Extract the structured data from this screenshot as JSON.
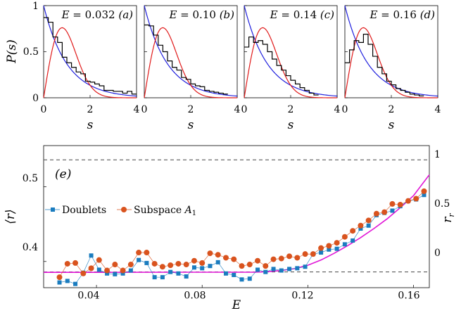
{
  "figure": {
    "colors": {
      "poisson": "#1f1fdd",
      "goe": "#e01a1a",
      "histogram": "#000000",
      "doublets": "#1a7cbf",
      "subspace": "#d9531e",
      "fit": "#e016d6",
      "reference": "#444444"
    }
  },
  "chart_data": [
    {
      "type": "line",
      "panel": "(a)",
      "title": "E = 0.032 (a)",
      "title_parts": {
        "var": "E",
        "eq": " = 0.032 ",
        "tag": "(a)"
      },
      "xlabel": "s",
      "ylabel": "P(s)",
      "xlim": [
        0,
        4
      ],
      "ylim": [
        0,
        1
      ],
      "xticks": [
        "0",
        "2",
        "4"
      ],
      "yticks": [
        "0",
        "0.5",
        "1"
      ],
      "histogram": {
        "edges": [
          0,
          0.2,
          0.4,
          0.6,
          0.8,
          1.0,
          1.2,
          1.4,
          1.6,
          1.8,
          2.0,
          2.2,
          2.4,
          2.6,
          2.8,
          3.0,
          3.2,
          3.4,
          3.6,
          3.8,
          4.0
        ],
        "values": [
          0.87,
          0.82,
          0.66,
          0.6,
          0.44,
          0.38,
          0.33,
          0.28,
          0.26,
          0.18,
          0.17,
          0.15,
          0.13,
          0.08,
          0.08,
          0.07,
          0.07,
          0.05,
          0.07,
          0.04
        ]
      },
      "series": [
        {
          "curve": "poisson"
        },
        {
          "curve": "goe"
        }
      ]
    },
    {
      "type": "line",
      "panel": "(b)",
      "title": "E = 0.10 (b)",
      "title_parts": {
        "var": "E",
        "eq": " = 0.10 ",
        "tag": "(b)"
      },
      "xlabel": "s",
      "xlim": [
        0,
        4
      ],
      "ylim": [
        0,
        1
      ],
      "xticks": [
        "0",
        "2",
        "4"
      ],
      "histogram": {
        "edges": [
          0,
          0.2,
          0.4,
          0.6,
          0.8,
          1.0,
          1.2,
          1.4,
          1.6,
          1.8,
          2.0,
          2.2,
          2.4,
          2.6,
          2.8,
          3.0,
          3.2,
          3.4,
          3.6
        ],
        "values": [
          0.79,
          0.78,
          0.68,
          0.57,
          0.5,
          0.4,
          0.33,
          0.3,
          0.22,
          0.2,
          0.15,
          0.13,
          0.12,
          0.08,
          0.07,
          0.06,
          0.05,
          0.04
        ]
      },
      "series": [
        {
          "curve": "poisson"
        },
        {
          "curve": "goe"
        }
      ]
    },
    {
      "type": "line",
      "panel": "(c)",
      "title": "E = 0.14 (c)",
      "title_parts": {
        "var": "E",
        "eq": " = 0.14 ",
        "tag": "(c)"
      },
      "xlabel": "s",
      "xlim": [
        0,
        4
      ],
      "ylim": [
        0,
        1
      ],
      "xticks": [
        "0",
        "2",
        "4"
      ],
      "histogram": {
        "edges": [
          0,
          0.2,
          0.4,
          0.6,
          0.8,
          1.0,
          1.2,
          1.4,
          1.6,
          1.8,
          2.0,
          2.2,
          2.4,
          2.6,
          2.8,
          3.0,
          3.2
        ],
        "values": [
          0.55,
          0.66,
          0.6,
          0.62,
          0.58,
          0.5,
          0.42,
          0.35,
          0.3,
          0.24,
          0.19,
          0.15,
          0.11,
          0.08,
          0.05,
          0.03
        ]
      },
      "series": [
        {
          "curve": "poisson"
        },
        {
          "curve": "goe"
        }
      ]
    },
    {
      "type": "line",
      "panel": "(d)",
      "title": "E = 0.16 (d)",
      "title_parts": {
        "var": "E",
        "eq": " = 0.16 ",
        "tag": "(d)"
      },
      "xlabel": "s",
      "xlim": [
        0,
        4
      ],
      "ylim": [
        0,
        1
      ],
      "xticks": [
        "0",
        "2",
        "4"
      ],
      "histogram": {
        "edges": [
          0,
          0.2,
          0.4,
          0.6,
          0.8,
          1.0,
          1.2,
          1.4,
          1.6,
          1.8,
          2.0,
          2.2,
          2.4,
          2.6,
          2.8,
          3.0,
          3.2,
          3.4
        ],
        "values": [
          0.38,
          0.52,
          0.62,
          0.6,
          0.69,
          0.58,
          0.45,
          0.33,
          0.26,
          0.18,
          0.14,
          0.1,
          0.08,
          0.06,
          0.04,
          0.03,
          0.02
        ]
      },
      "series": [
        {
          "curve": "poisson"
        },
        {
          "curve": "goe"
        }
      ]
    },
    {
      "type": "scatter",
      "panel": "(e)",
      "label": "(e)",
      "xlabel": "E",
      "ylabel": "⟨r⟩",
      "y2label": "r",
      "y2label_sub": "r",
      "xlim": [
        0.02,
        0.166
      ],
      "ylim": [
        0.365,
        0.555
      ],
      "xticks": [
        "0.04",
        "0.08",
        "0.12",
        "0.16"
      ],
      "yticks": [
        "0.4",
        "0.5"
      ],
      "y2ticks": [
        "0",
        "0.5",
        "1"
      ],
      "reference_lines": [
        0.386,
        0.5359
      ],
      "series": [
        {
          "name": "Doublets",
          "marker": "square",
          "x": [
            0.026,
            0.029,
            0.032,
            0.035,
            0.038,
            0.041,
            0.044,
            0.047,
            0.05,
            0.053,
            0.056,
            0.059,
            0.062,
            0.065,
            0.068,
            0.071,
            0.074,
            0.077,
            0.08,
            0.083,
            0.086,
            0.089,
            0.092,
            0.095,
            0.098,
            0.101,
            0.104,
            0.107,
            0.11,
            0.113,
            0.116,
            0.119,
            0.122,
            0.125,
            0.128,
            0.131,
            0.134,
            0.137,
            0.14,
            0.143,
            0.146,
            0.149,
            0.152,
            0.155,
            0.158,
            0.161,
            0.164
          ],
          "y": [
            0.372,
            0.374,
            0.37,
            0.385,
            0.408,
            0.389,
            0.384,
            0.383,
            0.384,
            0.388,
            0.402,
            0.398,
            0.379,
            0.379,
            0.386,
            0.384,
            0.38,
            0.392,
            0.391,
            0.394,
            0.399,
            0.384,
            0.382,
            0.376,
            0.377,
            0.389,
            0.386,
            0.39,
            0.388,
            0.39,
            0.391,
            0.393,
            0.41,
            0.412,
            0.416,
            0.417,
            0.423,
            0.428,
            0.444,
            0.448,
            0.462,
            0.465,
            0.468,
            0.474,
            0.481,
            0.483,
            0.489
          ]
        },
        {
          "name": "Subspace A1",
          "marker": "circle",
          "x": [
            0.026,
            0.029,
            0.032,
            0.035,
            0.038,
            0.041,
            0.044,
            0.047,
            0.05,
            0.053,
            0.056,
            0.059,
            0.062,
            0.065,
            0.068,
            0.071,
            0.074,
            0.077,
            0.08,
            0.083,
            0.086,
            0.089,
            0.092,
            0.095,
            0.098,
            0.101,
            0.104,
            0.107,
            0.11,
            0.113,
            0.116,
            0.119,
            0.122,
            0.125,
            0.128,
            0.131,
            0.134,
            0.137,
            0.14,
            0.143,
            0.146,
            0.149,
            0.152,
            0.155,
            0.158,
            0.161,
            0.164
          ],
          "y": [
            0.379,
            0.397,
            0.398,
            0.384,
            0.391,
            0.402,
            0.388,
            0.396,
            0.388,
            0.396,
            0.412,
            0.412,
            0.397,
            0.393,
            0.395,
            0.397,
            0.396,
            0.401,
            0.398,
            0.411,
            0.409,
            0.405,
            0.403,
            0.394,
            0.396,
            0.401,
            0.394,
            0.403,
            0.404,
            0.407,
            0.405,
            0.41,
            0.41,
            0.418,
            0.421,
            0.425,
            0.433,
            0.441,
            0.448,
            0.455,
            0.464,
            0.466,
            0.477,
            0.476,
            0.481,
            0.484,
            0.494
          ]
        },
        {
          "curve": "fit",
          "x": [
            0.02,
            0.1,
            0.105,
            0.11,
            0.115,
            0.12,
            0.125,
            0.13,
            0.135,
            0.14,
            0.145,
            0.15,
            0.155,
            0.16,
            0.166
          ],
          "y": [
            0.3855,
            0.3858,
            0.3865,
            0.388,
            0.3905,
            0.395,
            0.402,
            0.411,
            0.421,
            0.432,
            0.444,
            0.457,
            0.472,
            0.488,
            0.516
          ]
        }
      ],
      "legend": {
        "placement": "center-left",
        "entries": [
          "Doublets",
          "Subspace A1"
        ],
        "subspace_label": {
          "text": "Subspace ",
          "symbol": "A",
          "sub": "1"
        }
      }
    }
  ]
}
